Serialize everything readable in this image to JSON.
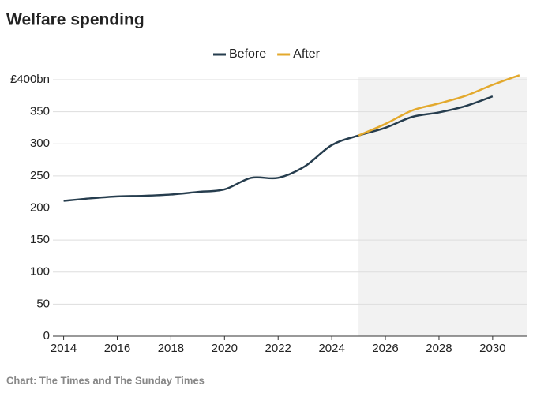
{
  "chart_data": {
    "type": "line",
    "title": "Welfare spending",
    "source": "Chart: The Times and The Sunday Times",
    "x": [
      2014,
      2015,
      2016,
      2017,
      2018,
      2019,
      2020,
      2021,
      2022,
      2023,
      2024,
      2025,
      2026,
      2027,
      2028,
      2029,
      2030,
      2031
    ],
    "series": [
      {
        "name": "Before",
        "color": "#263d4e",
        "values": [
          211,
          215,
          218,
          219,
          221,
          225,
          229,
          247,
          247,
          265,
          298,
          313,
          325,
          342,
          349,
          359,
          374,
          null
        ]
      },
      {
        "name": "After",
        "color": "#e3a92d",
        "values": [
          null,
          null,
          null,
          null,
          null,
          null,
          null,
          null,
          null,
          null,
          null,
          313,
          331,
          352,
          363,
          375,
          392,
          407
        ]
      }
    ],
    "xlim": [
      2013.6,
      2031.3
    ],
    "ylim": [
      0,
      400
    ],
    "xticks": [
      2014,
      2016,
      2018,
      2020,
      2022,
      2024,
      2026,
      2028,
      2030
    ],
    "yticks": [
      0,
      50,
      100,
      150,
      200,
      250,
      300,
      350,
      {
        "value": 400,
        "label": "£400bn"
      }
    ],
    "grid": true,
    "legend": "top",
    "shaded_region": [
      2025,
      2031.3
    ],
    "shade_color": "#f2f2f2"
  }
}
